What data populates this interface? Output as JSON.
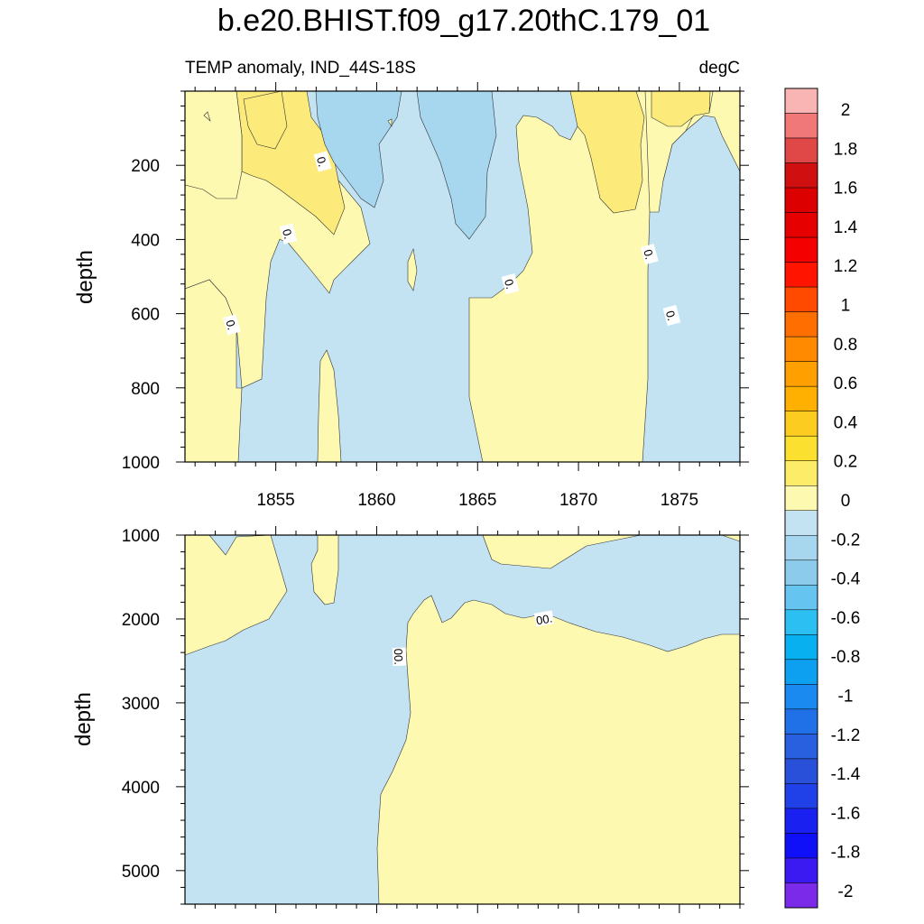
{
  "title": "b.e20.BHIST.f09_g17.20thC.179_01",
  "subtitle_left": "TEMP anomaly, IND_44S-18S",
  "subtitle_right": "degC",
  "colors": {
    "pos_fill_0_0.2": "#fdf9b1",
    "pos_fill_0.2_0.4": "#fceb7a",
    "neg_fill_0_-0.2": "#c3e3f3",
    "neg_fill_-0.2_-0.4": "#a6d7ef",
    "contour_line": "#333333"
  },
  "colorbar": {
    "labels": [
      "2",
      "1.8",
      "1.6",
      "1.4",
      "1.2",
      "1",
      "0.8",
      "0.6",
      "0.4",
      "0.2",
      "0",
      "-0.2",
      "-0.4",
      "-0.6",
      "-0.8",
      "-1",
      "-1.2",
      "-1.4",
      "-1.6",
      "-1.8",
      "-2"
    ],
    "colors": [
      "#f9b4b4",
      "#f07878",
      "#e04848",
      "#d01010",
      "#dc0000",
      "#e60000",
      "#f50000",
      "#ff1400",
      "#ff4a00",
      "#ff6e00",
      "#ff8a00",
      "#ffa000",
      "#ffb000",
      "#fccc20",
      "#fce030",
      "#fcec68",
      "#fdf9b1",
      "#c3e3f3",
      "#a6d7ef",
      "#8ccbec",
      "#66c4f0",
      "#2cbff2",
      "#08b0f0",
      "#0ea0f0",
      "#1a8af0",
      "#2070e8",
      "#2860e0",
      "#2850d8",
      "#2040e8",
      "#1a20f0",
      "#1010f8",
      "#3a1af0",
      "#7a2ae8"
    ]
  },
  "chart_data": [
    {
      "type": "filled-contour",
      "panel": "upper",
      "xlabel": "",
      "ylabel": "depth",
      "xlim": [
        1850.5,
        1878.0
      ],
      "ylim": [
        1000,
        0
      ],
      "xticks": [
        1855,
        1860,
        1865,
        1870,
        1875
      ],
      "yticks": [
        200,
        400,
        600,
        800,
        1000
      ],
      "contour_labels": [
        {
          "text": "0.",
          "x": 1857.3,
          "y": 190
        },
        {
          "text": "0.",
          "x": 1855.6,
          "y": 385
        },
        {
          "text": "0.",
          "x": 1852.8,
          "y": 630
        },
        {
          "text": "0.",
          "x": 1866.6,
          "y": 520
        },
        {
          "text": "0.",
          "x": 1873.5,
          "y": 440
        },
        {
          "text": "0.",
          "x": 1874.6,
          "y": 605
        }
      ],
      "regions": [
        {
          "level": "0_to_0.2",
          "x": [
            1850.5,
            1853.2,
            1853.8,
            1851.2,
            1850.5
          ],
          "y": [
            0,
            0,
            80,
            640,
            640
          ]
        },
        {
          "level": "0.2_to_0.4",
          "x": [
            1853.0,
            1855.8,
            1856.7,
            1855.8,
            1853.9
          ],
          "y": [
            0,
            0,
            200,
            80,
            30
          ]
        },
        {
          "level": "0_to_-0.2",
          "x": [
            1856.5,
            1858.0,
            1862.8,
            1864.8,
            1865.0,
            1856.5
          ],
          "y": [
            0,
            0,
            0,
            150,
            1000,
            1000
          ]
        },
        {
          "level": "-0.2_to_-0.4",
          "x": [
            1862.5,
            1865.0,
            1866.3,
            1866.0,
            1864.0
          ],
          "y": [
            0,
            0,
            150,
            340,
            300
          ]
        },
        {
          "level": "0_to_0.2",
          "x": [
            1865.6,
            1872.7,
            1872.0,
            1866.0,
            1865.6
          ],
          "y": [
            120,
            120,
            1000,
            1000,
            560
          ]
        },
        {
          "level": "0.2_to_0.4",
          "x": [
            1869.2,
            1872.2,
            1873.3,
            1870.6,
            1869.4
          ],
          "y": [
            0,
            0,
            320,
            330,
            120
          ]
        },
        {
          "level": "0_to_-0.2",
          "x": [
            1873.1,
            1875.0,
            1877.2,
            1873.9
          ],
          "y": [
            240,
            210,
            1000,
            1000
          ]
        },
        {
          "level": "0_to_0.2",
          "x": [
            1850.5,
            1853.4,
            1853.2,
            1850.5
          ],
          "y": [
            850,
            850,
            1000,
            1000
          ]
        },
        {
          "level": "0_to_0.2",
          "x": [
            1857.0,
            1857.9,
            1858.1,
            1857.6
          ],
          "y": [
            700,
            700,
            1000,
            1000
          ]
        },
        {
          "level": "0_to_0.2",
          "x": [
            1863.2,
            1863.8,
            1863.5
          ],
          "y": [
            430,
            450,
            530
          ]
        }
      ]
    },
    {
      "type": "filled-contour",
      "panel": "lower",
      "xlabel": "",
      "ylabel": "depth",
      "xlim": [
        1850.5,
        1878.0
      ],
      "ylim": [
        5400,
        1000
      ],
      "xticks": [
        1855,
        1860,
        1865,
        1870,
        1875
      ],
      "yticks": [
        1000,
        2000,
        3000,
        4000,
        5000
      ],
      "contour_labels": [
        {
          "text": "00.",
          "x": 1868.3,
          "y": 2000
        },
        {
          "text": "00.",
          "x": 1861.1,
          "y": 2450
        }
      ],
      "regions": [
        {
          "level": "0_to_0.2",
          "x": [
            1850.5,
            1852.0,
            1853.8,
            1854.6,
            1855.5,
            1853.2,
            1850.5
          ],
          "y": [
            1000,
            1000,
            1300,
            1300,
            1700,
            2150,
            2400
          ]
        },
        {
          "level": "0_to_0.2",
          "x": [
            1857.2,
            1858.0,
            1857.6,
            1856.8
          ],
          "y": [
            1000,
            1000,
            1850,
            1600
          ]
        },
        {
          "level": "0_to_0.2",
          "x": [
            1865.5,
            1873.0,
            1877.6,
            1877.8,
            1862.8,
            1862.6,
            1861.5,
            1861.4,
            1862.0,
            1862.6
          ],
          "y": [
            1000,
            1000,
            1000,
            2150,
            2300,
            2650,
            3600,
            4400,
            5400,
            5400
          ]
        },
        {
          "level": "0_to_0.2",
          "x": [
            1861.4,
            1862.4,
            1863.0,
            1864.4,
            1866.0,
            1868.0,
            1870.0,
            1872.0,
            1874.0,
            1876.0,
            1877.8,
            1861.4
          ],
          "y": [
            2300,
            1850,
            1800,
            2000,
            1850,
            1900,
            2000,
            2150,
            2300,
            2150,
            2150,
            5400
          ]
        }
      ]
    }
  ]
}
